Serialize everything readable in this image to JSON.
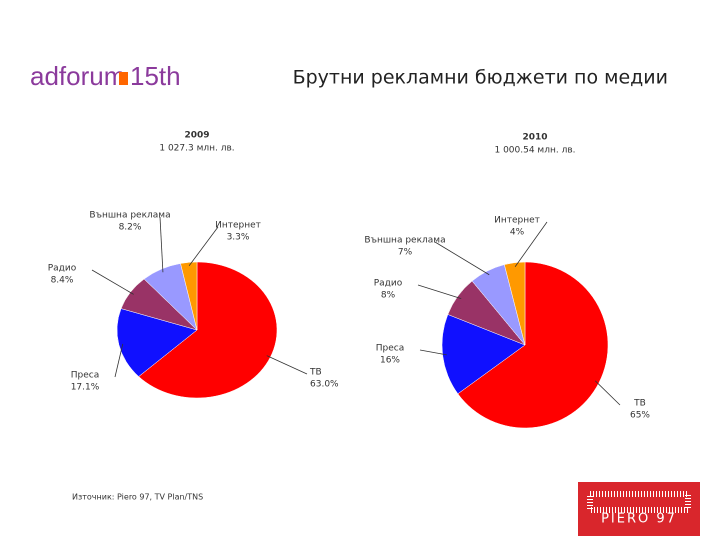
{
  "header": {
    "logo": "adforum",
    "logo_suffix": "15th",
    "title": "Брутни рекламни бюджети по медии"
  },
  "chart_data": [
    {
      "type": "pie",
      "title": "2009",
      "subtitle": "1 027.3 млн. лв.",
      "categories": [
        "ТВ",
        "Преса",
        "Радио",
        "Външна реклама",
        "Интернет"
      ],
      "values": [
        63.0,
        17.1,
        8.4,
        8.2,
        3.3
      ],
      "value_labels": [
        "63.0%",
        "17.1%",
        "8.4%",
        "8.2%",
        "3.3%"
      ],
      "colors": [
        "#ff0000",
        "#1010ff",
        "#993366",
        "#9999ff",
        "#ff9900"
      ]
    },
    {
      "type": "pie",
      "title": "2010",
      "subtitle": "1 000.54 млн. лв.",
      "categories": [
        "ТВ",
        "Преса",
        "Радио",
        "Външна реклама",
        "Интернет"
      ],
      "values": [
        65,
        16,
        8,
        7,
        4
      ],
      "value_labels": [
        "65%",
        "16%",
        "8%",
        "7%",
        "4%"
      ],
      "colors": [
        "#ff0000",
        "#1010ff",
        "#993366",
        "#9999ff",
        "#ff9900"
      ]
    }
  ],
  "footer": {
    "source": "Източник: Piero 97, TV Plan/TNS",
    "brand": "PIERO 97"
  }
}
